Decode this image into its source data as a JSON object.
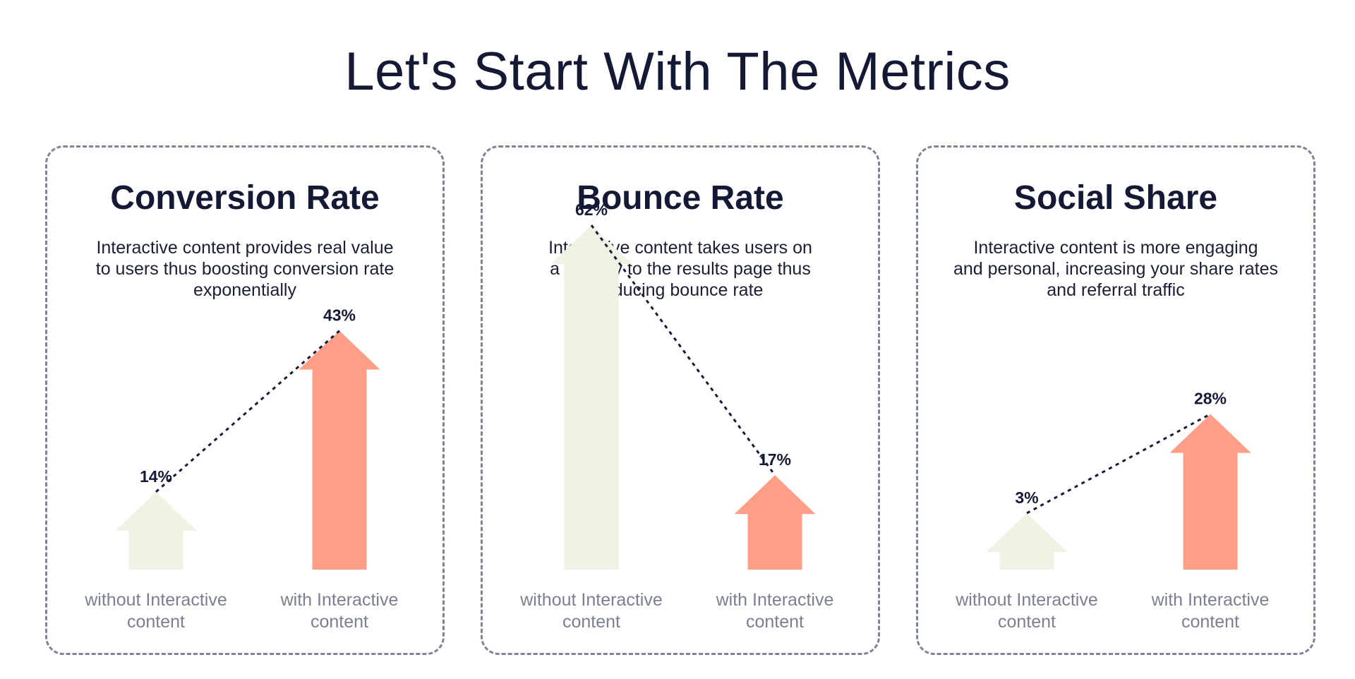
{
  "page": {
    "title": "Let's Start With The Metrics"
  },
  "colors": {
    "without": "#eef3e4",
    "with": "#ff9e87",
    "text": "#141a36",
    "muted": "#7b8090",
    "border": "#7e8494"
  },
  "chart_data": [
    {
      "type": "bar",
      "title": "Conversion Rate",
      "subtitle": "Interactive content provides real value to users thus boosting conversion rate exponentially",
      "subtitle_lines": [
        "Interactive content provides real value",
        "to users thus boosting conversion rate",
        "exponentially"
      ],
      "categories": [
        "without Interactive content",
        "with Interactive content"
      ],
      "category_lines": [
        [
          "without Interactive",
          "content"
        ],
        [
          "with Interactive",
          "content"
        ]
      ],
      "values": [
        14,
        43
      ],
      "value_labels": [
        "14%",
        "43%"
      ],
      "ylim": [
        0,
        62
      ],
      "grid": false
    },
    {
      "type": "bar",
      "title": "Bounce Rate",
      "subtitle": "Interactive content takes users on a journey to the results page thus reducing bounce rate",
      "subtitle_lines": [
        "Interactive content takes users on",
        "a journey to the results page thus",
        "reducing bounce rate"
      ],
      "categories": [
        "without Interactive content",
        "with Interactive content"
      ],
      "category_lines": [
        [
          "without Interactive",
          "content"
        ],
        [
          "with Interactive",
          "content"
        ]
      ],
      "values": [
        62,
        17
      ],
      "value_labels": [
        "62%",
        "17%"
      ],
      "ylim": [
        0,
        62
      ],
      "grid": false
    },
    {
      "type": "bar",
      "title": "Social Share",
      "subtitle": "Interactive content is more engaging and personal, increasing your share rates and referral traffic",
      "subtitle_lines": [
        "Interactive content is more engaging",
        "and personal, increasing your share rates",
        "and referral traffic"
      ],
      "categories": [
        "without Interactive content",
        "with Interactive content"
      ],
      "category_lines": [
        [
          "without Interactive",
          "content"
        ],
        [
          "with Interactive",
          "content"
        ]
      ],
      "values": [
        3,
        28
      ],
      "value_labels": [
        "3%",
        "28%"
      ],
      "ylim": [
        0,
        62
      ],
      "grid": false
    }
  ]
}
